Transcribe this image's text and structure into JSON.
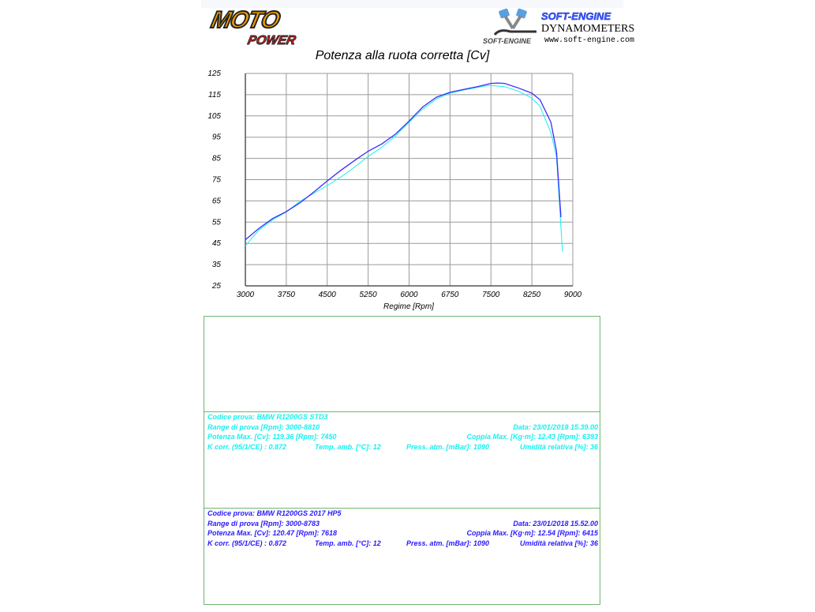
{
  "header": {
    "left_logo_text": [
      "MOTO",
      "POWER"
    ],
    "right_logo_title": "SOFT-ENGINE",
    "right_logo_subtitle": "DYNAMOMETERS",
    "right_logo_url": "www.soft-engine.com",
    "right_logo_mark": "SOFT-ENGINE"
  },
  "chart_data": {
    "type": "line",
    "title": "Potenza alla ruota corretta [Cv]",
    "xlabel": "Regime [Rpm]",
    "ylabel": "",
    "xlim": [
      3000,
      9000
    ],
    "ylim": [
      25,
      125
    ],
    "xticks": [
      3000,
      3750,
      4500,
      5250,
      6000,
      6750,
      7500,
      8250,
      9000
    ],
    "yticks": [
      25,
      35,
      45,
      55,
      65,
      75,
      85,
      95,
      105,
      115,
      125
    ],
    "grid": true,
    "series": [
      {
        "color": "#17f0f0",
        "x": [
          3000,
          3250,
          3500,
          3750,
          4000,
          4250,
          4500,
          4750,
          5000,
          5250,
          5500,
          5750,
          6000,
          6250,
          6500,
          6750,
          7000,
          7250,
          7450,
          7750,
          8000,
          8250,
          8400,
          8600,
          8700,
          8810
        ],
        "y": [
          43.9,
          51.3,
          56.1,
          59.8,
          64.8,
          68.5,
          72.2,
          76.2,
          80.9,
          85.9,
          90.2,
          95.6,
          102.0,
          108.2,
          113.0,
          115.7,
          117.2,
          118.4,
          119.4,
          118.8,
          116.7,
          113.4,
          109.5,
          97.0,
          85.9,
          41.1
        ]
      },
      {
        "color": "#3a2cff",
        "x": [
          3000,
          3250,
          3500,
          3750,
          4000,
          4250,
          4500,
          4750,
          5000,
          5250,
          5500,
          5750,
          6000,
          6250,
          6500,
          6750,
          7000,
          7250,
          7500,
          7618,
          7750,
          8000,
          8250,
          8400,
          8600,
          8700,
          8783
        ],
        "y": [
          46.7,
          52.1,
          56.7,
          60.0,
          64.1,
          69.1,
          74.4,
          79.4,
          84.0,
          88.4,
          91.8,
          96.4,
          102.6,
          109.2,
          113.8,
          116.1,
          117.5,
          118.8,
          120.3,
          120.5,
          120.3,
          118.2,
          115.7,
          112.6,
          102.0,
          88.4,
          57.3
        ]
      }
    ]
  },
  "tests": [
    {
      "color": "#17f0f0",
      "codice": "Codice prova: BMW R1200GS STD3",
      "range": "Range di prova [Rpm]: 3000-8810",
      "data": "Data: 23/01/2018   15.39.00",
      "potenza": "Potenza Max. [Cv]: 119.36   [Rpm]: 7450",
      "coppia": "Coppia Max. [Kg·m]: 12.43   [Rpm]: 6393",
      "kcorr": "K corr. (95/1/CE) : 0.872",
      "temp": "Temp. amb. [°C]: 12",
      "press": "Press. atm. [mBar]: 1090",
      "umid": "Umidità relativa [%]: 36"
    },
    {
      "color": "#2a18ff",
      "codice": "Codice prova: BMW R1200GS 2017 HP5",
      "range": "Range di prova [Rpm]: 3000-8783",
      "data": "Data: 23/01/2018   15.52.00",
      "potenza": "Potenza Max. [Cv]: 120.47   [Rpm]: 7618",
      "coppia": "Coppia Max. [Kg·m]: 12.54   [Rpm]: 6415",
      "kcorr": "K corr. (95/1/CE) : 0.872",
      "temp": "Temp. amb. [°C]: 12",
      "press": "Press. atm. [mBar]: 1090",
      "umid": "Umidità relativa [%]: 36"
    }
  ]
}
